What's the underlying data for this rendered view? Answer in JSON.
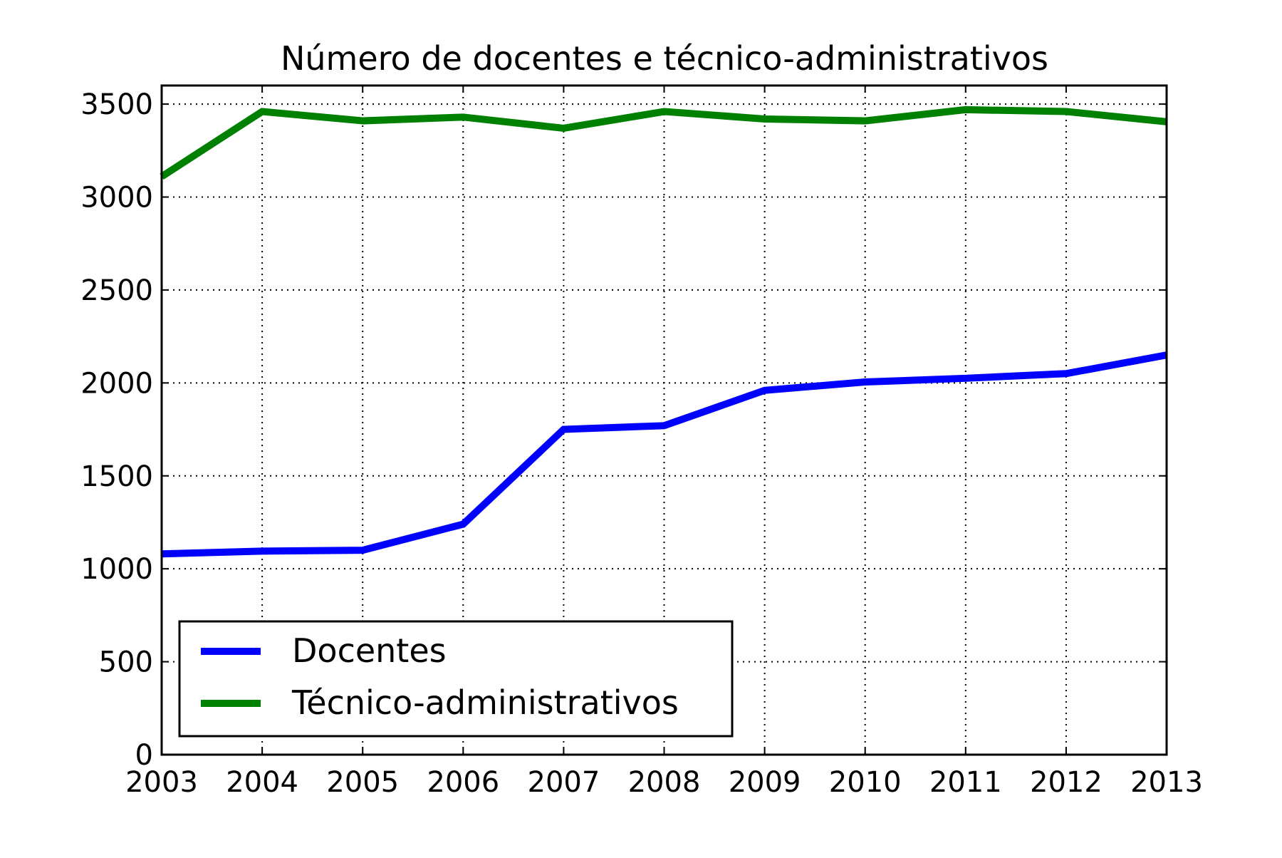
{
  "chart_data": {
    "type": "line",
    "title": "Número de docentes e técnico-administrativos",
    "xlabel": "",
    "ylabel": "",
    "x": [
      2003,
      2004,
      2005,
      2006,
      2007,
      2008,
      2009,
      2010,
      2011,
      2012,
      2013
    ],
    "xlim": [
      2003,
      2013
    ],
    "ylim": [
      0,
      3600
    ],
    "xticks": [
      "2003",
      "2004",
      "2005",
      "2006",
      "2007",
      "2008",
      "2009",
      "2010",
      "2011",
      "2012",
      "2013"
    ],
    "yticks": [
      "0",
      "500",
      "1000",
      "1500",
      "2000",
      "2500",
      "3000",
      "3500"
    ],
    "ytick_values": [
      0,
      500,
      1000,
      1500,
      2000,
      2500,
      3000,
      3500
    ],
    "grid": true,
    "grid_style": "dotted",
    "legend_position": "lower-left",
    "series": [
      {
        "name": "Docentes",
        "color": "#0000ff",
        "values": [
          1080,
          1095,
          1100,
          1240,
          1750,
          1770,
          1960,
          2005,
          2025,
          2050,
          2150
        ]
      },
      {
        "name": "Técnico-administrativos",
        "color": "#008000",
        "values": [
          3110,
          3460,
          3410,
          3430,
          3370,
          3460,
          3420,
          3410,
          3470,
          3460,
          3405
        ]
      }
    ]
  }
}
